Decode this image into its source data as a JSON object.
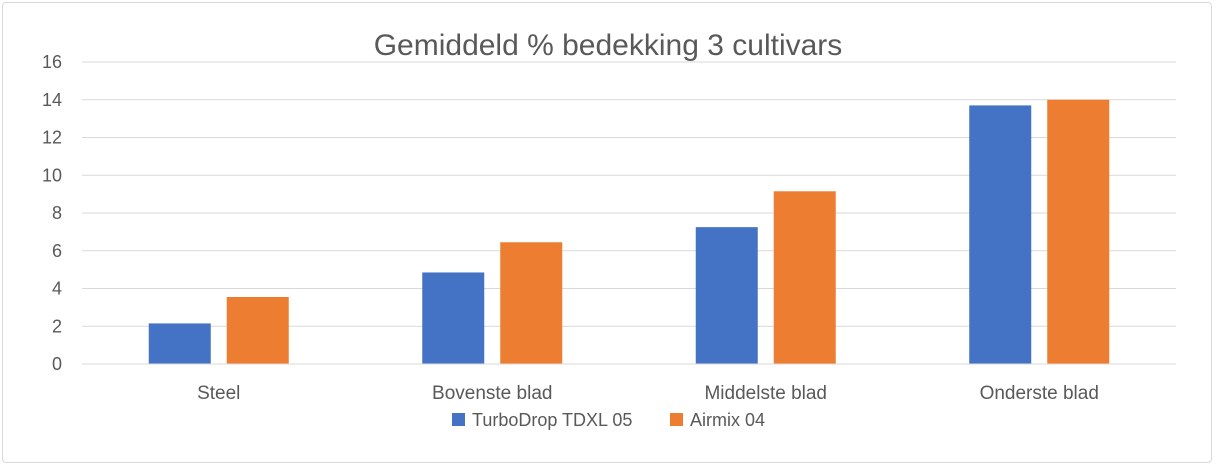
{
  "chart_data": {
    "type": "bar",
    "title": "Gemiddeld % bedekking 3 cultivars",
    "xlabel": "",
    "ylabel": "",
    "categories": [
      "Steel",
      "Bovenste blad",
      "Middelste blad",
      "Onderste blad"
    ],
    "series": [
      {
        "name": "TurboDrop TDXL 05",
        "color": "#4472C4",
        "values": [
          2.15,
          4.85,
          7.25,
          13.7
        ]
      },
      {
        "name": "Airmix 04",
        "color": "#ED7D31",
        "values": [
          3.55,
          6.45,
          9.15,
          14.0
        ]
      }
    ],
    "ylim": [
      0,
      16
    ],
    "yticks": [
      "0",
      "2",
      "4",
      "6",
      "8",
      "10",
      "12",
      "14",
      "16"
    ],
    "grid": true,
    "legend_position": "bottom"
  }
}
